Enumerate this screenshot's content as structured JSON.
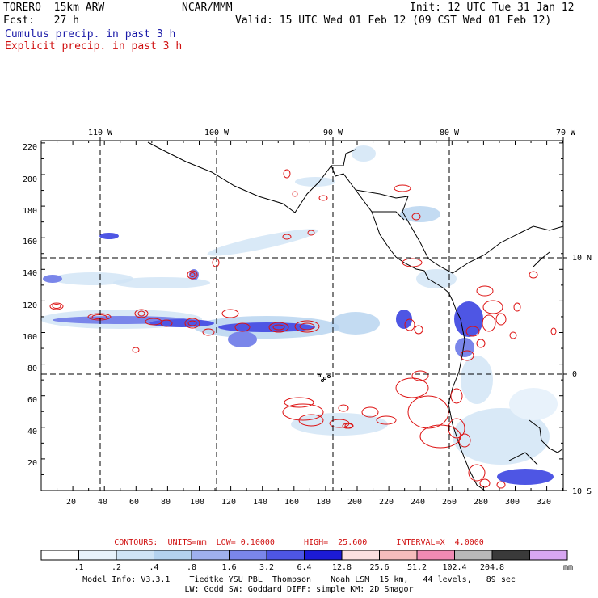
{
  "header": {
    "model_name": "TORERO  15km ARW",
    "forecast_label": "Fcst:   27 h",
    "center": "NCAR/MMM",
    "init": "Init: 12 UTC Tue 31 Jan 12",
    "valid": "Valid: 15 UTC Wed 01 Feb 12 (09 CST Wed 01 Feb 12)",
    "field1": "Cumulus precip. in past 3 h",
    "field2": "Explicit precip. in past 3 h"
  },
  "colors": {
    "cumulus_text": "#1a1aa8",
    "explicit_text": "#d01010",
    "contour_line": "#dd1111",
    "grid_line": "#000000",
    "coast_line": "#000000"
  },
  "map": {
    "lon_labels": [
      "110 W",
      "100 W",
      "90 W",
      "80 W",
      "70 W"
    ],
    "lat_labels": [
      "10 N",
      "0",
      "10 S"
    ],
    "y_ticks": [
      "220",
      "200",
      "180",
      "160",
      "140",
      "120",
      "100",
      "80",
      "60",
      "40",
      "20"
    ],
    "x_ticks": [
      "20",
      "40",
      "60",
      "80",
      "100",
      "120",
      "140",
      "160",
      "180",
      "200",
      "220",
      "240",
      "260",
      "280",
      "300",
      "320"
    ]
  },
  "contour_info": {
    "text": "CONTOURS:  UNITS=mm  LOW= 0.10000      HIGH=  25.600      INTERVAL=X  4.0000"
  },
  "colorbar": {
    "colors": [
      "#ffffff",
      "#e8f2fb",
      "#cfe3f5",
      "#b4d2ef",
      "#9fb0ee",
      "#7a86ea",
      "#4e56e4",
      "#1c1ad6",
      "#fbe0e0",
      "#f6bcbc",
      "#f08ab4",
      "#b8b8b8",
      "#3a3a3a",
      "#d8a6f2"
    ],
    "labels": [
      ".1",
      ".2",
      ".4",
      ".8",
      "1.6",
      "3.2",
      "6.4",
      "12.8",
      "25.6",
      "51.2",
      "102.4",
      "204.8"
    ],
    "unit": "mm"
  },
  "model_info": {
    "line1": "Model Info: V3.3.1    Tiedtke YSU PBL  Thompson    Noah LSM  15 km,   44 levels,   89 sec",
    "line2": "LW: Godd SW: Goddard DIFF: simple KM: 2D Smagor"
  }
}
